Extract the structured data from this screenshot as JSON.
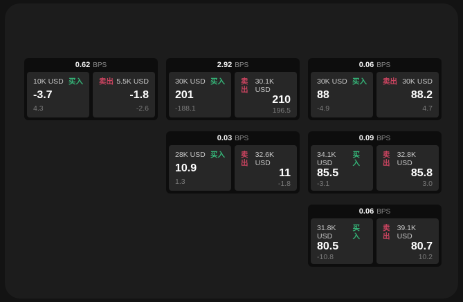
{
  "colors": {
    "outer_bg": "#131313",
    "panel_bg": "#1c1c1c",
    "card_bg": "#0d0d0d",
    "tile_bg": "#272727",
    "buy_green": "#35b578",
    "sell_red": "#cb4460",
    "text_primary": "#f5f5f5",
    "text_secondary": "#8d8d8d",
    "text_label": "#c7c7c7",
    "text_muted": "#7b7b7b"
  },
  "labels": {
    "bps": "BPS",
    "buy": "买入",
    "sell": "卖出"
  },
  "cards": [
    {
      "bps": "0.62",
      "row": 1,
      "col": 1,
      "buy": {
        "size": "10K USD",
        "value": "-3.7",
        "sub": "4.3"
      },
      "sell": {
        "size": "5.5K USD",
        "value": "-1.8",
        "sub": "-2.6"
      }
    },
    {
      "bps": "2.92",
      "row": 1,
      "col": 2,
      "buy": {
        "size": "30K USD",
        "value": "201",
        "sub": "-188.1"
      },
      "sell": {
        "size": "30.1K USD",
        "value": "210",
        "sub": "196.5"
      }
    },
    {
      "bps": "0.06",
      "row": 1,
      "col": 3,
      "buy": {
        "size": "30K USD",
        "value": "88",
        "sub": "-4.9"
      },
      "sell": {
        "size": "30K USD",
        "value": "88.2",
        "sub": "4.7"
      }
    },
    {
      "bps": "0.03",
      "row": 2,
      "col": 2,
      "buy": {
        "size": "28K USD",
        "value": "10.9",
        "sub": "1.3"
      },
      "sell": {
        "size": "32.6K USD",
        "value": "11",
        "sub": "-1.8"
      }
    },
    {
      "bps": "0.09",
      "row": 2,
      "col": 3,
      "buy": {
        "size": "34.1K USD",
        "value": "85.5",
        "sub": "-3.1"
      },
      "sell": {
        "size": "32.8K USD",
        "value": "85.8",
        "sub": "3.0"
      }
    },
    {
      "bps": "0.06",
      "row": 3,
      "col": 3,
      "buy": {
        "size": "31.8K USD",
        "value": "80.5",
        "sub": "-10.8"
      },
      "sell": {
        "size": "39.1K USD",
        "value": "80.7",
        "sub": "10.2"
      }
    }
  ]
}
